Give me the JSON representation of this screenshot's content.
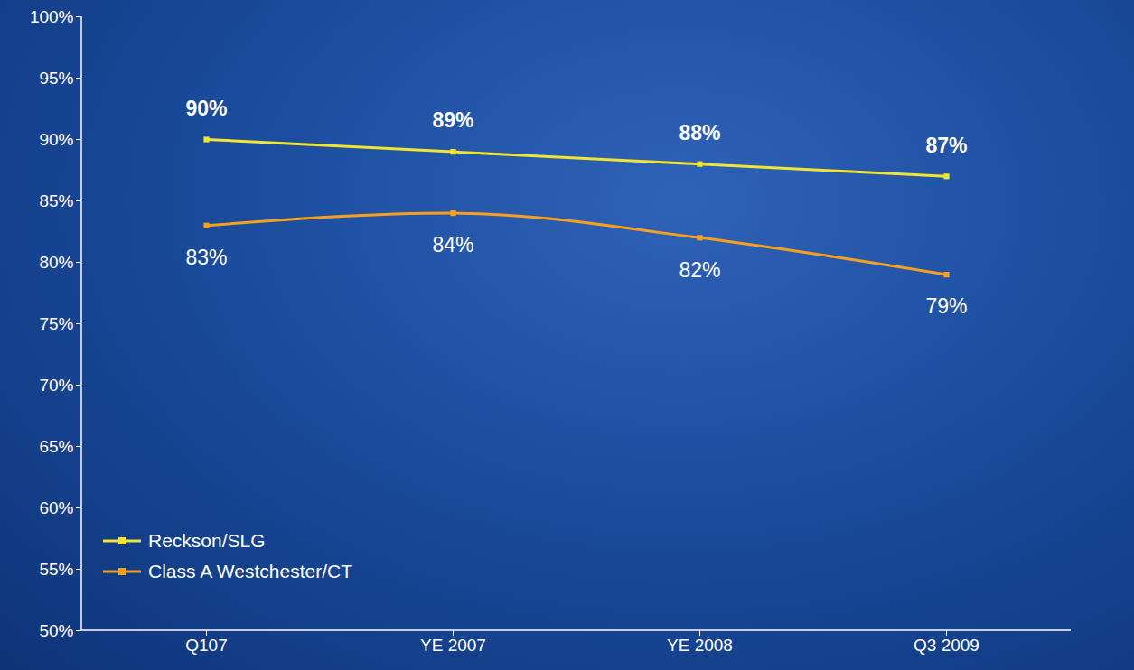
{
  "chart_data": {
    "type": "line",
    "categories": [
      "Q107",
      "YE 2007",
      "YE 2008",
      "Q3 2009"
    ],
    "series": [
      {
        "name": "Reckson/SLG",
        "color": "#f2e531",
        "values": [
          90,
          89,
          88,
          87
        ],
        "value_labels": [
          "90%",
          "89%",
          "88%",
          "87%"
        ],
        "marker": "square"
      },
      {
        "name": "Class A Westchester/CT",
        "color": "#f5a01e",
        "values": [
          83,
          84,
          82,
          79
        ],
        "value_labels": [
          "83%",
          "84%",
          "82%",
          "79%"
        ],
        "marker": "square"
      }
    ],
    "ylim": [
      50,
      100
    ],
    "yticks": [
      {
        "value": 50,
        "label": "50%"
      },
      {
        "value": 55,
        "label": "55%"
      },
      {
        "value": 60,
        "label": "60%"
      },
      {
        "value": 65,
        "label": "65%"
      },
      {
        "value": 70,
        "label": "70%"
      },
      {
        "value": 75,
        "label": "75%"
      },
      {
        "value": 80,
        "label": "80%"
      },
      {
        "value": 85,
        "label": "85%"
      },
      {
        "value": 90,
        "label": "90%"
      },
      {
        "value": 95,
        "label": "95%"
      },
      {
        "value": 100,
        "label": "100%"
      }
    ],
    "grid": false,
    "legend": "bottom-left",
    "data_labels": true
  }
}
